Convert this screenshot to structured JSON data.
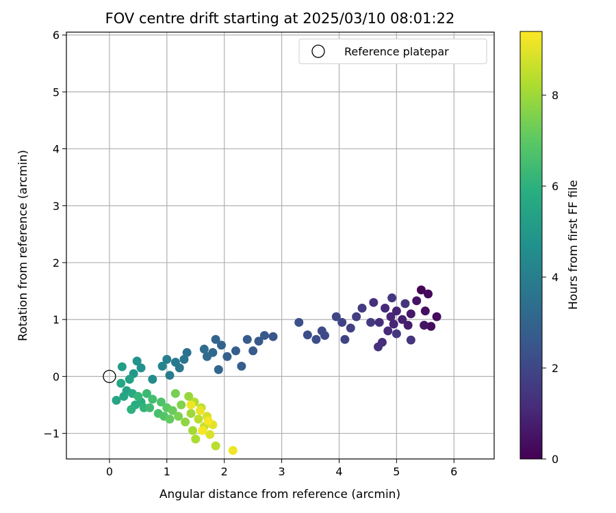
{
  "chart_data": {
    "type": "scatter",
    "title": "FOV centre drift starting at 2025/03/10 08:01:22",
    "xlabel": "Angular distance from reference (arcmin)",
    "ylabel": "Rotation from reference (arcmin)",
    "xlim": [
      -0.75,
      6.7
    ],
    "ylim": [
      -1.45,
      6.05
    ],
    "xticks": [
      "0",
      "1",
      "2",
      "3",
      "4",
      "5",
      "6"
    ],
    "yticks": [
      "−1",
      "0",
      "1",
      "2",
      "3",
      "4",
      "5",
      "6"
    ],
    "grid": true,
    "legend": {
      "position": "top-right",
      "entries": [
        {
          "label": "Reference platepar",
          "marker": "open-circle"
        }
      ]
    },
    "reference_point": {
      "x": 0,
      "y": 0
    },
    "colorbar": {
      "label": "Hours from first FF file",
      "colormap": "viridis",
      "range": [
        0,
        9.4
      ],
      "ticks": [
        "0",
        "2",
        "4",
        "6",
        "8"
      ]
    },
    "points": [
      {
        "x": 5.43,
        "y": 1.52,
        "c": 0.1
      },
      {
        "x": 5.55,
        "y": 1.45,
        "c": 0.2
      },
      {
        "x": 5.7,
        "y": 1.05,
        "c": 0.3
      },
      {
        "x": 5.6,
        "y": 0.88,
        "c": 0.3
      },
      {
        "x": 5.5,
        "y": 1.15,
        "c": 0.4
      },
      {
        "x": 5.48,
        "y": 0.9,
        "c": 0.5
      },
      {
        "x": 5.35,
        "y": 1.33,
        "c": 0.5
      },
      {
        "x": 5.25,
        "y": 1.1,
        "c": 0.6
      },
      {
        "x": 5.2,
        "y": 0.9,
        "c": 0.7
      },
      {
        "x": 5.1,
        "y": 1.0,
        "c": 0.8
      },
      {
        "x": 5.0,
        "y": 1.15,
        "c": 0.9
      },
      {
        "x": 4.95,
        "y": 0.92,
        "c": 1.0
      },
      {
        "x": 4.9,
        "y": 1.05,
        "c": 1.0
      },
      {
        "x": 4.85,
        "y": 0.8,
        "c": 1.1
      },
      {
        "x": 4.8,
        "y": 1.2,
        "c": 1.1
      },
      {
        "x": 4.7,
        "y": 0.95,
        "c": 1.2
      },
      {
        "x": 4.75,
        "y": 0.6,
        "c": 1.2
      },
      {
        "x": 4.68,
        "y": 0.52,
        "c": 1.3
      },
      {
        "x": 4.6,
        "y": 1.3,
        "c": 1.3
      },
      {
        "x": 5.25,
        "y": 0.64,
        "c": 1.4
      },
      {
        "x": 5.15,
        "y": 1.28,
        "c": 1.4
      },
      {
        "x": 5.0,
        "y": 0.75,
        "c": 1.5
      },
      {
        "x": 4.92,
        "y": 1.38,
        "c": 1.5
      },
      {
        "x": 4.55,
        "y": 0.95,
        "c": 1.6
      },
      {
        "x": 4.4,
        "y": 1.2,
        "c": 1.6
      },
      {
        "x": 4.3,
        "y": 1.05,
        "c": 1.7
      },
      {
        "x": 4.2,
        "y": 0.85,
        "c": 1.8
      },
      {
        "x": 4.05,
        "y": 0.95,
        "c": 1.9
      },
      {
        "x": 4.1,
        "y": 0.65,
        "c": 1.9
      },
      {
        "x": 3.95,
        "y": 1.05,
        "c": 2.0
      },
      {
        "x": 3.75,
        "y": 0.72,
        "c": 2.1
      },
      {
        "x": 3.7,
        "y": 0.8,
        "c": 2.1
      },
      {
        "x": 3.6,
        "y": 0.65,
        "c": 2.2
      },
      {
        "x": 3.45,
        "y": 0.73,
        "c": 2.2
      },
      {
        "x": 3.3,
        "y": 0.95,
        "c": 2.3
      },
      {
        "x": 2.85,
        "y": 0.7,
        "c": 2.5
      },
      {
        "x": 2.7,
        "y": 0.72,
        "c": 2.6
      },
      {
        "x": 2.6,
        "y": 0.62,
        "c": 2.6
      },
      {
        "x": 2.5,
        "y": 0.45,
        "c": 2.7
      },
      {
        "x": 2.4,
        "y": 0.65,
        "c": 2.7
      },
      {
        "x": 2.3,
        "y": 0.18,
        "c": 2.8
      },
      {
        "x": 2.2,
        "y": 0.45,
        "c": 2.8
      },
      {
        "x": 2.05,
        "y": 0.35,
        "c": 2.9
      },
      {
        "x": 1.95,
        "y": 0.55,
        "c": 3.0
      },
      {
        "x": 1.85,
        "y": 0.65,
        "c": 3.0
      },
      {
        "x": 1.9,
        "y": 0.12,
        "c": 3.1
      },
      {
        "x": 1.8,
        "y": 0.42,
        "c": 3.2
      },
      {
        "x": 1.65,
        "y": 0.48,
        "c": 3.3
      },
      {
        "x": 1.7,
        "y": 0.35,
        "c": 3.3
      },
      {
        "x": 1.35,
        "y": 0.42,
        "c": 3.5
      },
      {
        "x": 1.3,
        "y": 0.3,
        "c": 3.6
      },
      {
        "x": 1.22,
        "y": 0.15,
        "c": 3.7
      },
      {
        "x": 1.15,
        "y": 0.25,
        "c": 3.8
      },
      {
        "x": 1.05,
        "y": 0.02,
        "c": 3.9
      },
      {
        "x": 1.0,
        "y": 0.3,
        "c": 4.0
      },
      {
        "x": 0.92,
        "y": 0.18,
        "c": 4.2
      },
      {
        "x": 0.75,
        "y": -0.05,
        "c": 4.5
      },
      {
        "x": 0.55,
        "y": 0.15,
        "c": 4.7
      },
      {
        "x": 0.48,
        "y": 0.27,
        "c": 4.8
      },
      {
        "x": 0.42,
        "y": 0.05,
        "c": 5.0
      },
      {
        "x": 0.22,
        "y": 0.17,
        "c": 5.2
      },
      {
        "x": 0.35,
        "y": -0.05,
        "c": 5.3
      },
      {
        "x": 0.3,
        "y": -0.25,
        "c": 5.4
      },
      {
        "x": 0.25,
        "y": -0.35,
        "c": 5.5
      },
      {
        "x": 0.12,
        "y": -0.42,
        "c": 5.5
      },
      {
        "x": 0.2,
        "y": -0.12,
        "c": 5.6
      },
      {
        "x": 0.4,
        "y": -0.3,
        "c": 5.7
      },
      {
        "x": 0.45,
        "y": -0.5,
        "c": 5.8
      },
      {
        "x": 0.55,
        "y": -0.45,
        "c": 5.9
      },
      {
        "x": 0.38,
        "y": -0.58,
        "c": 6.0
      },
      {
        "x": 0.6,
        "y": -0.55,
        "c": 6.1
      },
      {
        "x": 0.5,
        "y": -0.35,
        "c": 6.2
      },
      {
        "x": 0.65,
        "y": -0.3,
        "c": 6.3
      },
      {
        "x": 0.7,
        "y": -0.55,
        "c": 6.4
      },
      {
        "x": 0.75,
        "y": -0.4,
        "c": 6.5
      },
      {
        "x": 0.85,
        "y": -0.65,
        "c": 6.6
      },
      {
        "x": 0.9,
        "y": -0.45,
        "c": 6.7
      },
      {
        "x": 0.95,
        "y": -0.7,
        "c": 6.8
      },
      {
        "x": 1.0,
        "y": -0.55,
        "c": 7.0
      },
      {
        "x": 1.05,
        "y": -0.75,
        "c": 7.1
      },
      {
        "x": 1.1,
        "y": -0.6,
        "c": 7.2
      },
      {
        "x": 1.15,
        "y": -0.3,
        "c": 7.4
      },
      {
        "x": 1.2,
        "y": -0.7,
        "c": 7.5
      },
      {
        "x": 1.25,
        "y": -0.5,
        "c": 7.6
      },
      {
        "x": 1.32,
        "y": -0.8,
        "c": 7.8
      },
      {
        "x": 1.38,
        "y": -0.35,
        "c": 7.9
      },
      {
        "x": 1.42,
        "y": -0.65,
        "c": 8.0
      },
      {
        "x": 1.45,
        "y": -0.95,
        "c": 8.1
      },
      {
        "x": 1.5,
        "y": -1.1,
        "c": 8.2
      },
      {
        "x": 1.48,
        "y": -0.45,
        "c": 8.3
      },
      {
        "x": 1.55,
        "y": -0.75,
        "c": 8.4
      },
      {
        "x": 1.6,
        "y": -0.55,
        "c": 8.5
      },
      {
        "x": 1.65,
        "y": -0.88,
        "c": 8.6
      },
      {
        "x": 1.7,
        "y": -0.7,
        "c": 8.8
      },
      {
        "x": 1.75,
        "y": -1.02,
        "c": 8.9
      },
      {
        "x": 1.8,
        "y": -0.85,
        "c": 9.0
      },
      {
        "x": 1.58,
        "y": -0.6,
        "c": 9.1
      },
      {
        "x": 1.85,
        "y": -1.22,
        "c": 8.4
      },
      {
        "x": 2.15,
        "y": -1.3,
        "c": 9.2
      },
      {
        "x": 1.62,
        "y": -0.95,
        "c": 9.3
      },
      {
        "x": 1.72,
        "y": -0.78,
        "c": 9.3
      },
      {
        "x": 1.42,
        "y": -0.5,
        "c": 9.2
      }
    ]
  }
}
